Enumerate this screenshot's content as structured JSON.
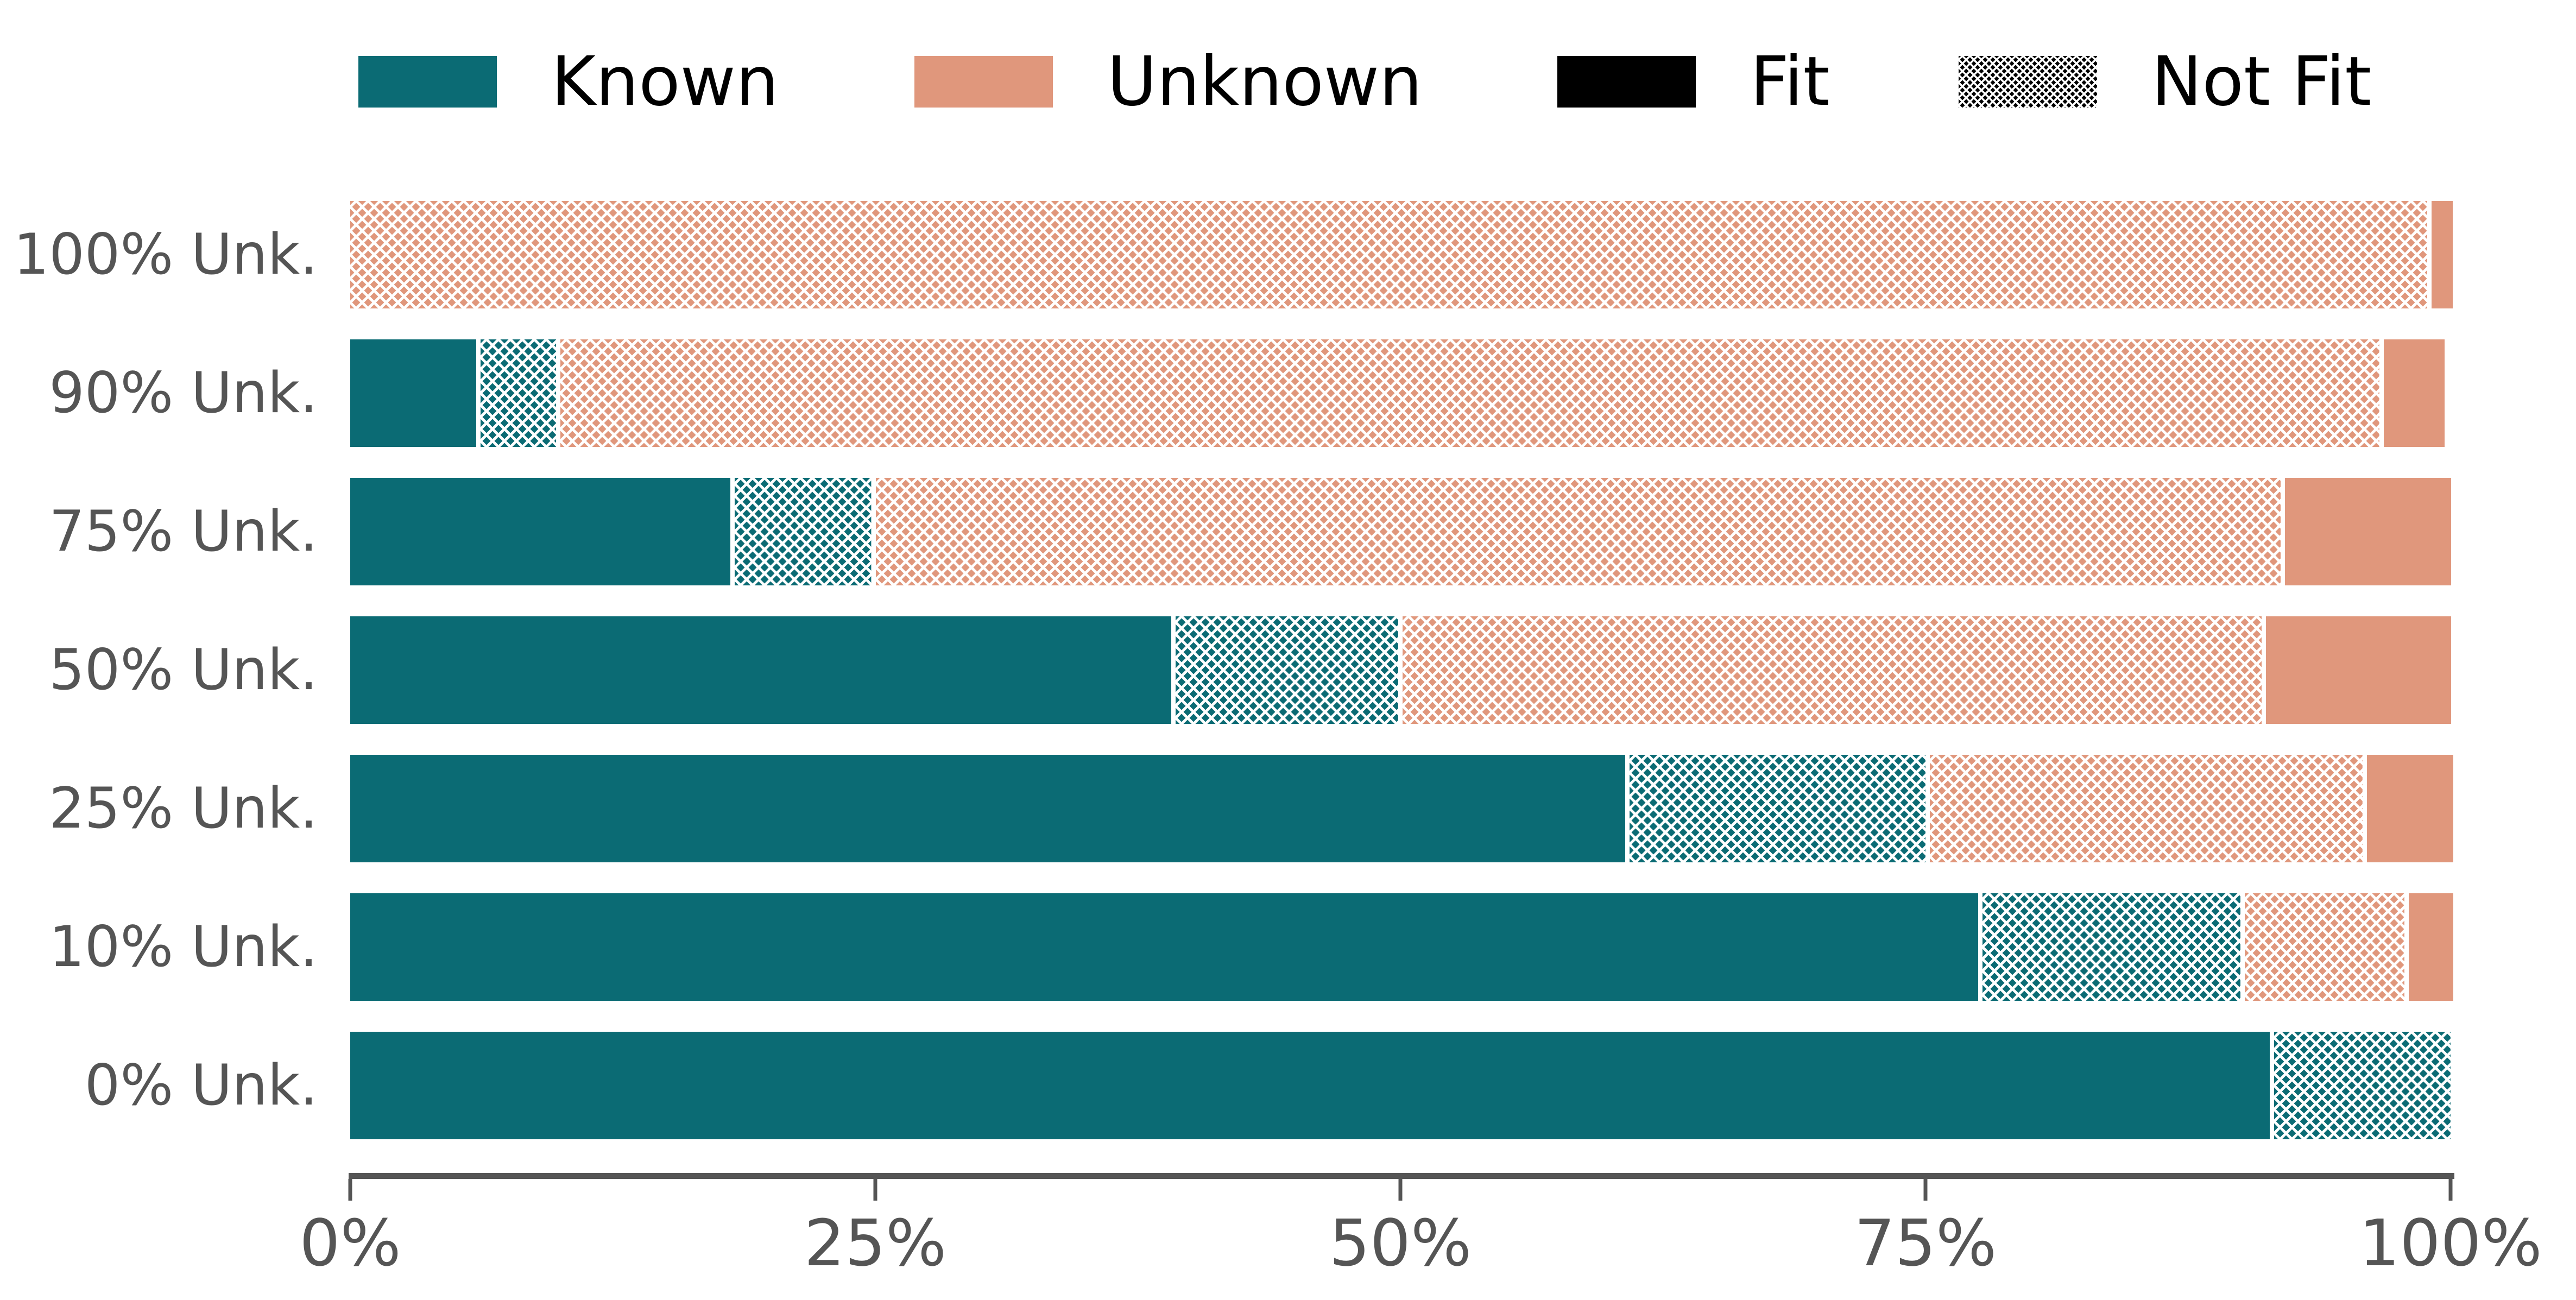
{
  "colors": {
    "teal": "#0b6b74",
    "salmon": "#e0977c",
    "black": "#000000",
    "label_gray": "#555555",
    "axis_gray": "#555555",
    "background": "#ffffff"
  },
  "legend": {
    "items": [
      {
        "label": "Known",
        "color_key": "teal",
        "pattern": "solid"
      },
      {
        "label": "Unknown",
        "color_key": "salmon",
        "pattern": "solid"
      },
      {
        "label": "Fit",
        "color_key": "black",
        "pattern": "solid"
      },
      {
        "label": "Not Fit",
        "color_key": "black",
        "pattern": "dots"
      }
    ]
  },
  "chart_data": {
    "type": "bar",
    "orientation": "horizontal",
    "stacked": true,
    "title": "",
    "xlabel": "",
    "ylabel": "",
    "categories": [
      "100% Unk.",
      "90% Unk.",
      "75% Unk.",
      "50% Unk.",
      "25% Unk.",
      "10% Unk.",
      "0% Unk."
    ],
    "series": [
      {
        "name": "Known Fit",
        "color_key": "teal",
        "pattern": "solid",
        "values": [
          0,
          6.0,
          18.1,
          39.1,
          60.7,
          77.5,
          91.4
        ]
      },
      {
        "name": "Known Not Fit",
        "color_key": "teal",
        "pattern": "dots",
        "values": [
          0,
          3.6,
          6.5,
          10.6,
          14.1,
          12.3,
          8.4
        ]
      },
      {
        "name": "Unknown Not Fit",
        "color_key": "salmon",
        "pattern": "dots",
        "values": [
          98.9,
          86.6,
          66.9,
          40.9,
          20.6,
          7.6,
          0
        ]
      },
      {
        "name": "Unknown Fit",
        "color_key": "salmon",
        "pattern": "solid",
        "values": [
          1.0,
          2.9,
          7.9,
          8.8,
          4.1,
          2.1,
          0
        ]
      }
    ],
    "x_ticks": [
      {
        "label": "0%",
        "value": 0
      },
      {
        "label": "25%",
        "value": 25
      },
      {
        "label": "50%",
        "value": 50
      },
      {
        "label": "75%",
        "value": 75
      },
      {
        "label": "100%",
        "value": 100
      }
    ],
    "xlim": [
      0,
      100
    ],
    "legend_position": "top",
    "grid": false
  }
}
